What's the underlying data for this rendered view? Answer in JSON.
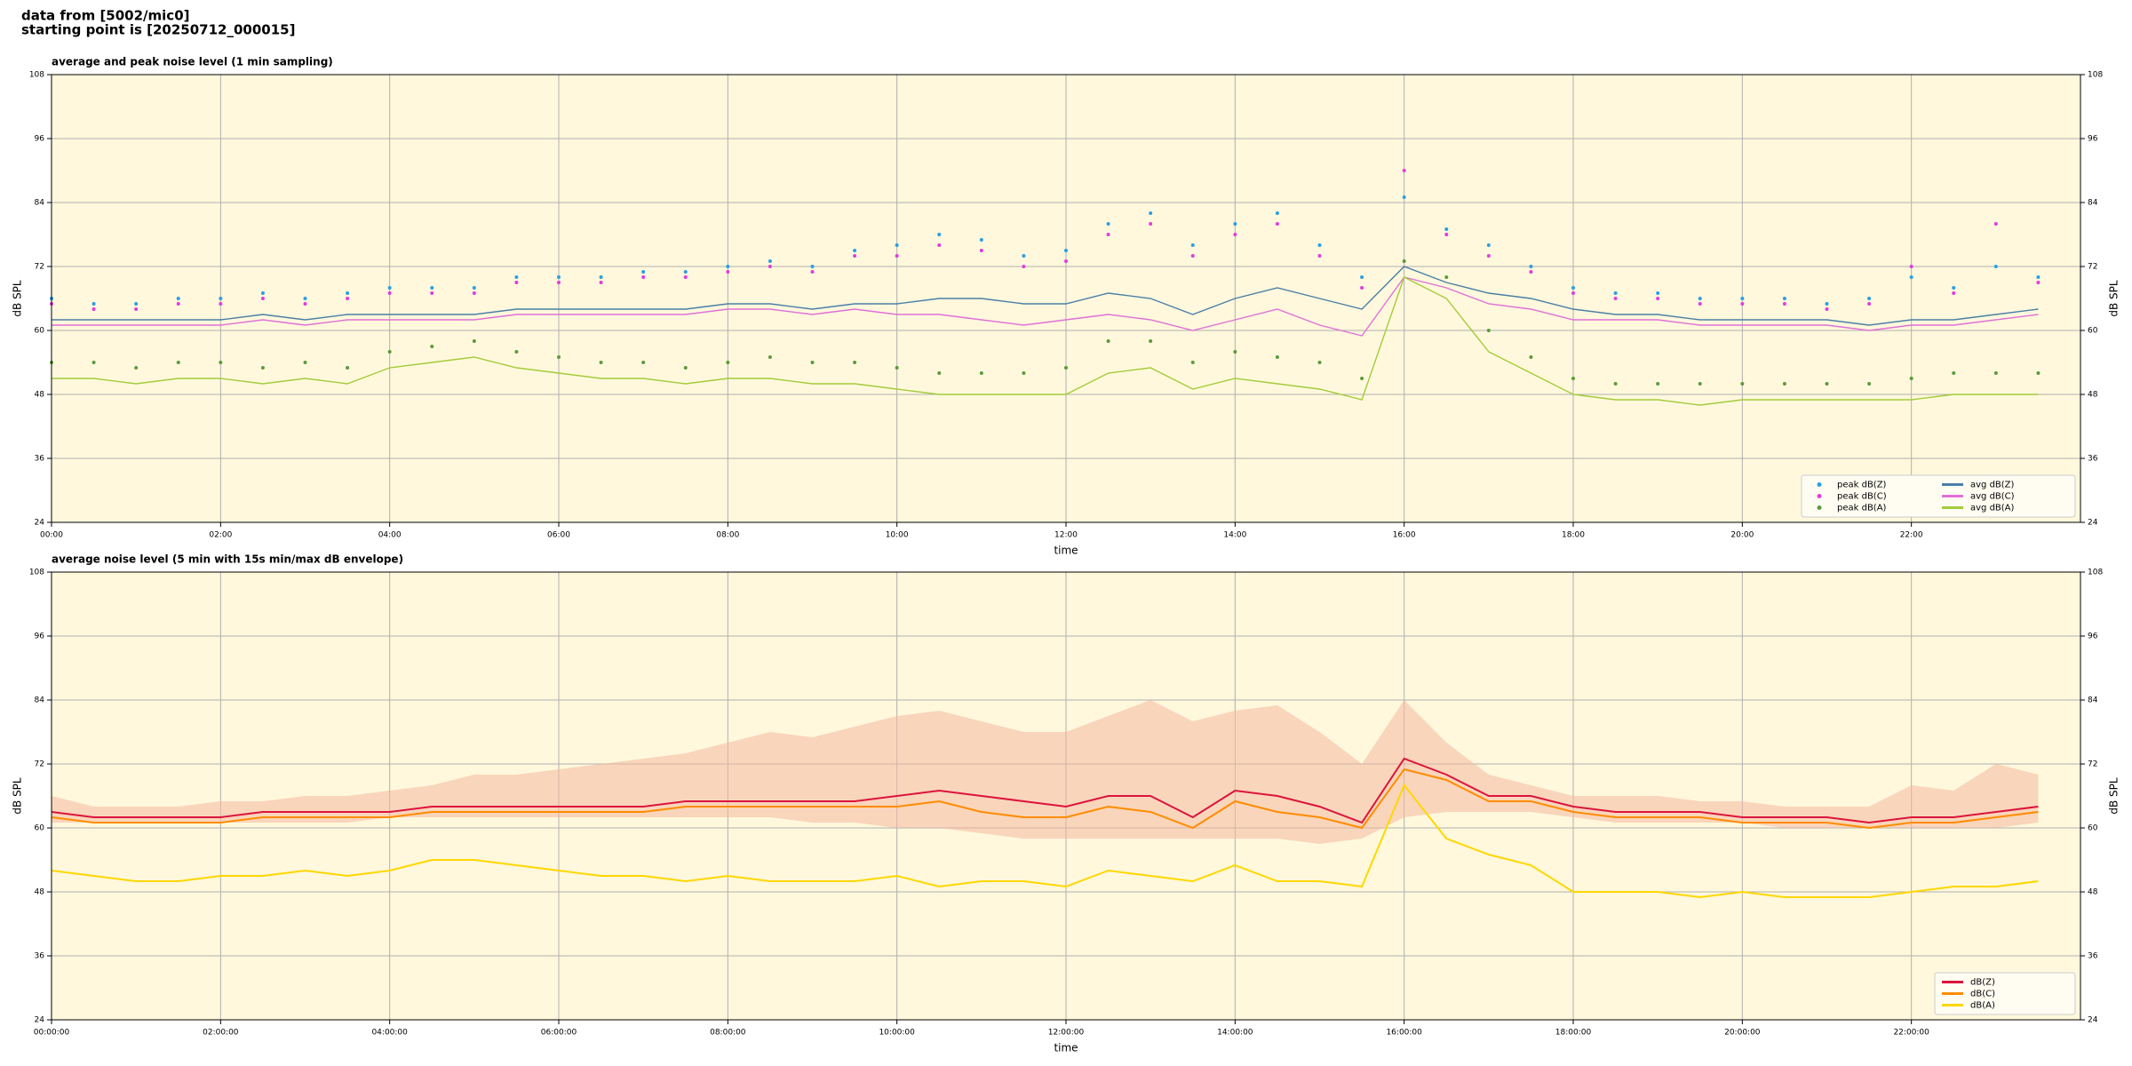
{
  "header": {
    "title": "data from [5002/mic0]",
    "subtitle": "starting point is [20250712_000015]"
  },
  "chart_data": [
    {
      "type": "line",
      "title": "average and peak noise level (1 min sampling)",
      "xlabel": "time",
      "ylabel": "dB SPL",
      "x": [
        "00:00",
        "00:30",
        "01:00",
        "01:30",
        "02:00",
        "02:30",
        "03:00",
        "03:30",
        "04:00",
        "04:30",
        "05:00",
        "05:30",
        "06:00",
        "06:30",
        "07:00",
        "07:30",
        "08:00",
        "08:30",
        "09:00",
        "09:30",
        "10:00",
        "10:30",
        "11:00",
        "11:30",
        "12:00",
        "12:30",
        "13:00",
        "13:30",
        "14:00",
        "14:30",
        "15:00",
        "15:30",
        "16:00",
        "16:30",
        "17:00",
        "17:30",
        "18:00",
        "18:30",
        "19:00",
        "19:30",
        "20:00",
        "20:30",
        "21:00",
        "21:30",
        "22:00",
        "22:30",
        "23:00",
        "23:30"
      ],
      "xlim": [
        "00:00",
        "24:00"
      ],
      "xticks": [
        "00:00",
        "02:00",
        "04:00",
        "06:00",
        "08:00",
        "10:00",
        "12:00",
        "14:00",
        "16:00",
        "18:00",
        "20:00",
        "22:00"
      ],
      "ylim": [
        24,
        108
      ],
      "yticks": [
        24,
        36,
        48,
        60,
        72,
        84,
        96,
        108
      ],
      "grid": true,
      "legend": "lower right",
      "legend_columns": 2,
      "series": [
        {
          "name": "peak dB(Z)",
          "kind": "scatter",
          "color": "#2a9fe6",
          "values": [
            66,
            65,
            65,
            66,
            66,
            67,
            66,
            67,
            68,
            68,
            68,
            70,
            70,
            70,
            71,
            71,
            72,
            73,
            72,
            75,
            76,
            78,
            77,
            74,
            75,
            80,
            82,
            76,
            80,
            82,
            76,
            70,
            85,
            79,
            76,
            72,
            68,
            67,
            67,
            66,
            66,
            66,
            65,
            66,
            70,
            68,
            72,
            70
          ]
        },
        {
          "name": "peak dB(C)",
          "kind": "scatter",
          "color": "#e23be0",
          "values": [
            65,
            64,
            64,
            65,
            65,
            66,
            65,
            66,
            67,
            67,
            67,
            69,
            69,
            69,
            70,
            70,
            71,
            72,
            71,
            74,
            74,
            76,
            75,
            72,
            73,
            78,
            80,
            74,
            78,
            80,
            74,
            68,
            90,
            78,
            74,
            71,
            67,
            66,
            66,
            65,
            65,
            65,
            64,
            65,
            72,
            67,
            80,
            69
          ]
        },
        {
          "name": "peak dB(A)",
          "kind": "scatter",
          "color": "#5b9b3c",
          "values": [
            54,
            54,
            53,
            54,
            54,
            53,
            54,
            53,
            56,
            57,
            58,
            56,
            55,
            54,
            54,
            53,
            54,
            55,
            54,
            54,
            53,
            52,
            52,
            52,
            53,
            58,
            58,
            54,
            56,
            55,
            54,
            51,
            73,
            70,
            60,
            55,
            51,
            50,
            50,
            50,
            50,
            50,
            50,
            50,
            51,
            52,
            52,
            52
          ]
        },
        {
          "name": "avg dB(Z)",
          "kind": "line",
          "color": "#4a7fa8",
          "values": [
            62,
            62,
            62,
            62,
            62,
            63,
            62,
            63,
            63,
            63,
            63,
            64,
            64,
            64,
            64,
            64,
            65,
            65,
            64,
            65,
            65,
            66,
            66,
            65,
            65,
            67,
            66,
            63,
            66,
            68,
            66,
            64,
            72,
            69,
            67,
            66,
            64,
            63,
            63,
            62,
            62,
            62,
            62,
            61,
            62,
            62,
            63,
            64
          ]
        },
        {
          "name": "avg dB(C)",
          "kind": "line",
          "color": "#e070d8",
          "values": [
            61,
            61,
            61,
            61,
            61,
            62,
            61,
            62,
            62,
            62,
            62,
            63,
            63,
            63,
            63,
            63,
            64,
            64,
            63,
            64,
            63,
            63,
            62,
            61,
            62,
            63,
            62,
            60,
            62,
            64,
            61,
            59,
            70,
            68,
            65,
            64,
            62,
            62,
            62,
            61,
            61,
            61,
            61,
            60,
            61,
            61,
            62,
            63
          ]
        },
        {
          "name": "avg dB(A)",
          "kind": "line",
          "color": "#a3cc3a",
          "values": [
            51,
            51,
            50,
            51,
            51,
            50,
            51,
            50,
            53,
            54,
            55,
            53,
            52,
            51,
            51,
            50,
            51,
            51,
            50,
            50,
            49,
            48,
            48,
            48,
            48,
            52,
            53,
            49,
            51,
            50,
            49,
            47,
            70,
            66,
            56,
            52,
            48,
            47,
            47,
            46,
            47,
            47,
            47,
            47,
            47,
            48,
            48,
            48
          ]
        }
      ]
    },
    {
      "type": "line",
      "title": "average noise level (5 min with 15s min/max dB envelope)",
      "xlabel": "time",
      "ylabel": "dB SPL",
      "x": [
        "00:00:00",
        "00:30:00",
        "01:00:00",
        "01:30:00",
        "02:00:00",
        "02:30:00",
        "03:00:00",
        "03:30:00",
        "04:00:00",
        "04:30:00",
        "05:00:00",
        "05:30:00",
        "06:00:00",
        "06:30:00",
        "07:00:00",
        "07:30:00",
        "08:00:00",
        "08:30:00",
        "09:00:00",
        "09:30:00",
        "10:00:00",
        "10:30:00",
        "11:00:00",
        "11:30:00",
        "12:00:00",
        "12:30:00",
        "13:00:00",
        "13:30:00",
        "14:00:00",
        "14:30:00",
        "15:00:00",
        "15:30:00",
        "16:00:00",
        "16:30:00",
        "17:00:00",
        "17:30:00",
        "18:00:00",
        "18:30:00",
        "19:00:00",
        "19:30:00",
        "20:00:00",
        "20:30:00",
        "21:00:00",
        "21:30:00",
        "22:00:00",
        "22:30:00",
        "23:00:00",
        "23:30:00"
      ],
      "xlim": [
        "00:00:00",
        "24:00:00"
      ],
      "xticks": [
        "00:00:00",
        "02:00:00",
        "04:00:00",
        "06:00:00",
        "08:00:00",
        "10:00:00",
        "12:00:00",
        "14:00:00",
        "16:00:00",
        "18:00:00",
        "20:00:00",
        "22:00:00"
      ],
      "ylim": [
        24,
        108
      ],
      "yticks": [
        24,
        36,
        48,
        60,
        72,
        84,
        96,
        108
      ],
      "grid": true,
      "legend": "lower right",
      "legend_columns": 1,
      "envelope": {
        "color": "#f4b8a0",
        "min": [
          61,
          61,
          61,
          61,
          61,
          61,
          61,
          61,
          62,
          62,
          62,
          62,
          62,
          62,
          62,
          62,
          62,
          62,
          61,
          61,
          60,
          60,
          59,
          58,
          58,
          58,
          58,
          58,
          58,
          58,
          57,
          58,
          62,
          63,
          63,
          63,
          62,
          61,
          61,
          61,
          61,
          60,
          60,
          60,
          60,
          60,
          60,
          61
        ],
        "max": [
          66,
          64,
          64,
          64,
          65,
          65,
          66,
          66,
          67,
          68,
          70,
          70,
          71,
          72,
          73,
          74,
          76,
          78,
          77,
          79,
          81,
          82,
          80,
          78,
          78,
          81,
          84,
          80,
          82,
          83,
          78,
          72,
          84,
          76,
          70,
          68,
          66,
          66,
          66,
          65,
          65,
          64,
          64,
          64,
          68,
          67,
          72,
          70
        ]
      },
      "series": [
        {
          "name": "dB(Z)",
          "kind": "line",
          "color": "#dc143c",
          "values": [
            63,
            62,
            62,
            62,
            62,
            63,
            63,
            63,
            63,
            64,
            64,
            64,
            64,
            64,
            64,
            65,
            65,
            65,
            65,
            65,
            66,
            67,
            66,
            65,
            64,
            66,
            66,
            62,
            67,
            66,
            64,
            61,
            73,
            70,
            66,
            66,
            64,
            63,
            63,
            63,
            62,
            62,
            62,
            61,
            62,
            62,
            63,
            64
          ]
        },
        {
          "name": "dB(C)",
          "kind": "line",
          "color": "#ff8c00",
          "values": [
            62,
            61,
            61,
            61,
            61,
            62,
            62,
            62,
            62,
            63,
            63,
            63,
            63,
            63,
            63,
            64,
            64,
            64,
            64,
            64,
            64,
            65,
            63,
            62,
            62,
            64,
            63,
            60,
            65,
            63,
            62,
            60,
            71,
            69,
            65,
            65,
            63,
            62,
            62,
            62,
            61,
            61,
            61,
            60,
            61,
            61,
            62,
            63
          ]
        },
        {
          "name": "dB(A)",
          "kind": "line",
          "color": "#ffd700",
          "values": [
            52,
            51,
            50,
            50,
            51,
            51,
            52,
            51,
            52,
            54,
            54,
            53,
            52,
            51,
            51,
            50,
            51,
            50,
            50,
            50,
            51,
            49,
            50,
            50,
            49,
            52,
            51,
            50,
            53,
            50,
            50,
            49,
            68,
            58,
            55,
            53,
            48,
            48,
            48,
            47,
            48,
            47,
            47,
            47,
            48,
            49,
            49,
            50
          ]
        }
      ]
    }
  ]
}
